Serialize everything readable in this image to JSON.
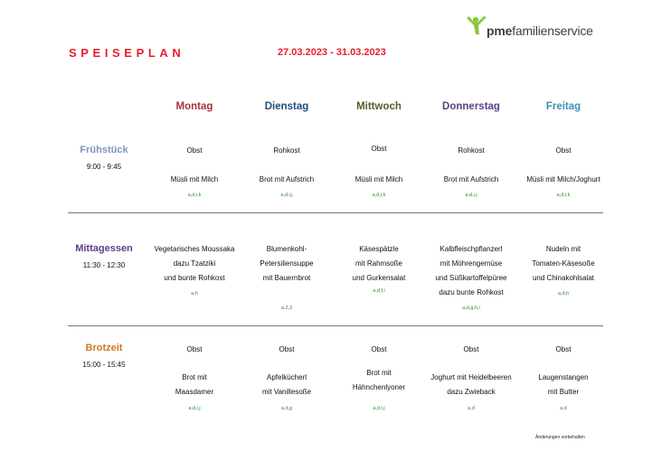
{
  "header": {
    "title": "SPEISEPLAN",
    "date_range": "27.03.2023 - 31.03.2023",
    "logo": {
      "brand_bold": "pme",
      "brand_rest": "familienservice",
      "mark_color": "#8cc63f"
    }
  },
  "days": [
    {
      "label": "Montag",
      "color": "#a8323c"
    },
    {
      "label": "Dienstag",
      "color": "#1f4e79"
    },
    {
      "label": "Mittwoch",
      "color": "#4f6228"
    },
    {
      "label": "Donnerstag",
      "color": "#5b3f86"
    },
    {
      "label": "Freitag",
      "color": "#3a8fb7"
    }
  ],
  "meals": [
    {
      "name": "Frühstück",
      "time": "9:00 - 9:45",
      "color": "#7f97b6",
      "items": [
        {
          "main": "Obst",
          "second": "Müsli mit Milch",
          "tag": "a,d,i,k"
        },
        {
          "main": "Rohkost",
          "second": "Brot mit Aufstrich",
          "tag": "a,d,i,j"
        },
        {
          "main": "Obst",
          "second": "Müsli mit Milch",
          "tag": "a,d,i,k"
        },
        {
          "main": "Rohkost",
          "second": "Brot mit Aufstrich",
          "tag": "a,d,i,j"
        },
        {
          "main": "Obst",
          "second": "Müsli mit Milch/Joghurt",
          "tag": "a,d,i,k"
        }
      ]
    },
    {
      "name": "Mittagessen",
      "time": "11:30 - 12:30",
      "color": "#5b3f86",
      "items": [
        {
          "lines": [
            "Vegetarisches Moussaka",
            "dazu Tzatziki",
            "und bunte Rohkost"
          ],
          "tag": "a,h"
        },
        {
          "lines": [
            "Blumenkohl-",
            "Petersiliensuppe",
            "mit Bauernbrot"
          ],
          "tag": "a,2,3"
        },
        {
          "lines": [
            "Käsespätzle",
            "mit Rahmsoße",
            "und Gurkensalat"
          ],
          "tag": "a,d,f,i"
        },
        {
          "lines": [
            "Kalbfleischpflanzerl",
            "mit Möhrengemüse",
            "und Süßkartoffelpüree",
            "dazu bunte Rohkost"
          ],
          "tag": "a,d,g,h,i"
        },
        {
          "lines": [
            "Nudeln mit",
            "Tomaten-Käsesoße",
            "und Chinakohlsalat"
          ],
          "tag": "a,d,h"
        }
      ]
    },
    {
      "name": "Brotzeit",
      "time": "15:00 - 15:45",
      "color": "#d07a2a",
      "items": [
        {
          "main": "Obst",
          "lines": [
            "Brot mit",
            "Maasdamer"
          ],
          "tag": "a,d,i,j"
        },
        {
          "main": "Obst",
          "lines": [
            "Apfelkücherl",
            "mit Vanillesoße"
          ],
          "tag": "a,d,g"
        },
        {
          "main": "Obst",
          "lines": [
            "Brot mit",
            "Hähnchenlyoner"
          ],
          "tag": "a,d,i,j"
        },
        {
          "main": "Obst",
          "lines": [
            "Joghurt mit Heidelbeeren",
            "dazu Zwieback"
          ],
          "tag": "a,d"
        },
        {
          "main": "Obst",
          "lines": [
            "Laugenstangen",
            "mit Butter"
          ],
          "tag": "a,d"
        }
      ]
    }
  ],
  "footnote": "Änderungen vorbehalten"
}
